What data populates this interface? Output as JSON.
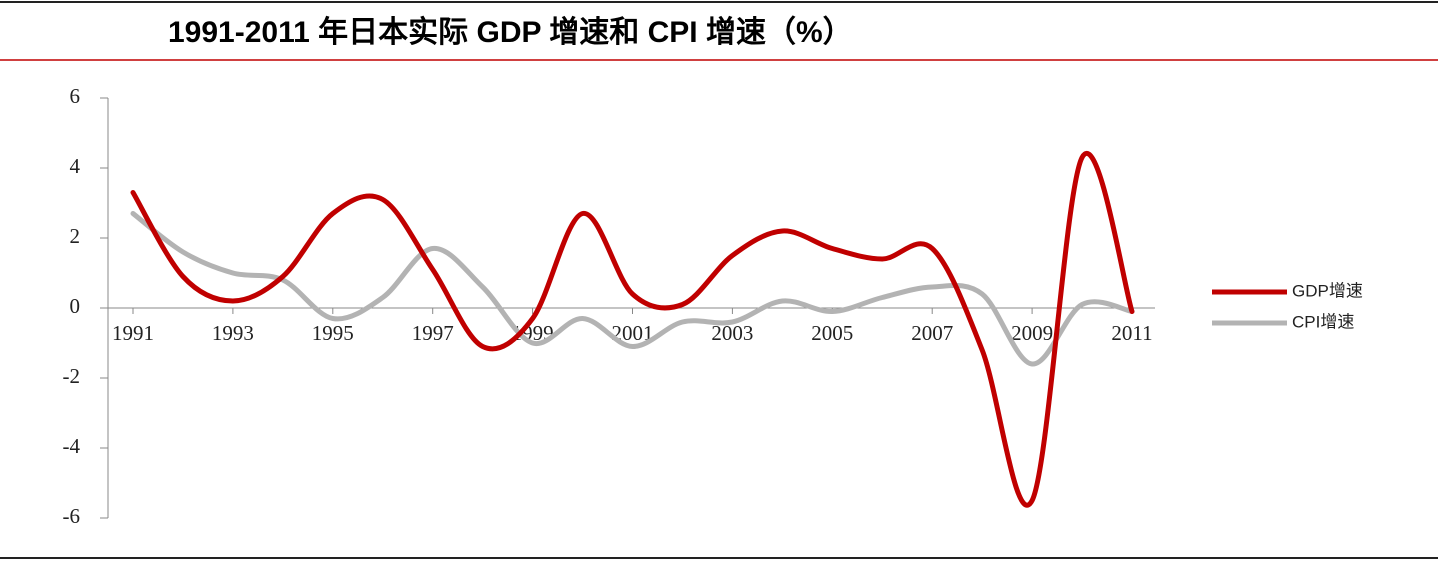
{
  "chart_data": {
    "type": "line",
    "title": "1991-2011 年日本实际 GDP 增速和 CPI 增速（%）",
    "x": [
      1991,
      1992,
      1993,
      1994,
      1995,
      1996,
      1997,
      1998,
      1999,
      2000,
      2001,
      2002,
      2003,
      2004,
      2005,
      2006,
      2007,
      2008,
      2009,
      2010,
      2011
    ],
    "series": [
      {
        "name": "GDP增速",
        "color": "#c00000",
        "values": [
          3.3,
          0.9,
          0.2,
          0.9,
          2.7,
          3.1,
          1.1,
          -1.1,
          -0.3,
          2.7,
          0.4,
          0.1,
          1.5,
          2.2,
          1.7,
          1.4,
          1.7,
          -1.2,
          -5.5,
          4.3,
          -0.1
        ]
      },
      {
        "name": "CPI增速",
        "color": "#b3b3b3",
        "values": [
          2.7,
          1.6,
          1.0,
          0.8,
          -0.3,
          0.3,
          1.7,
          0.6,
          -1.0,
          -0.3,
          -1.1,
          -0.4,
          -0.4,
          0.2,
          -0.1,
          0.3,
          0.6,
          0.4,
          -1.6,
          0.1,
          -0.1
        ]
      }
    ],
    "xlim": [
      1991,
      2011
    ],
    "xticks": [
      1991,
      1993,
      1995,
      1997,
      1999,
      2001,
      2003,
      2005,
      2007,
      2009,
      2011
    ],
    "ylim": [
      -6,
      6
    ],
    "yticks": [
      -6,
      -4,
      -2,
      0,
      2,
      4,
      6
    ]
  }
}
